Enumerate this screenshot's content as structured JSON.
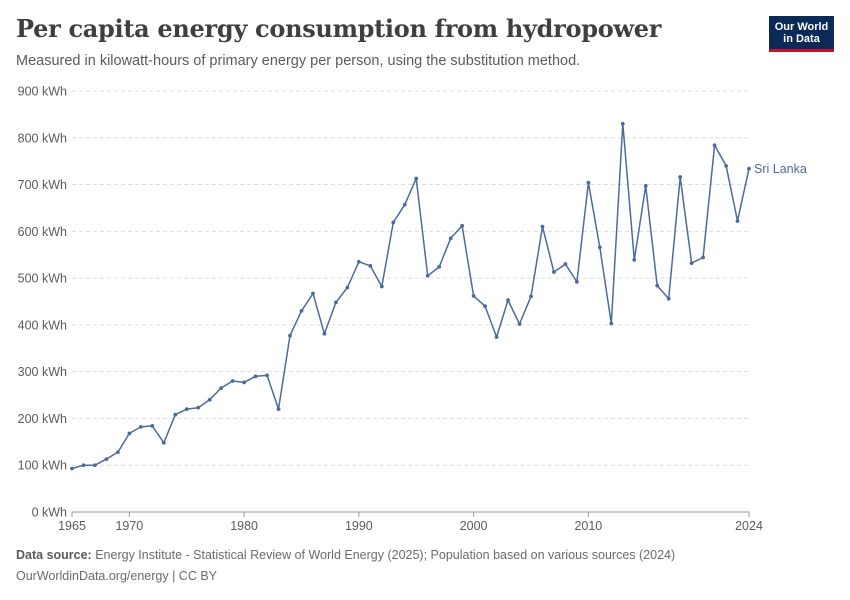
{
  "header": {
    "title": "Per capita energy consumption from hydropower",
    "subtitle": "Measured in kilowatt-hours of primary energy per person, using the substitution method."
  },
  "logo": {
    "line1": "Our World",
    "line2": "in Data"
  },
  "footer": {
    "source_label": "Data source:",
    "source_text": " Energy Institute - Statistical Review of World Energy (2025); Population based on various sources (2024)",
    "credit": "OurWorldinData.org/energy | CC BY"
  },
  "colors": {
    "series": "#4c6a9c",
    "grid": "#dddddd",
    "text": "#5b5b5b"
  },
  "chart_data": {
    "type": "line",
    "title": "Per capita energy consumption from hydropower",
    "ylabel": "",
    "xlabel": "",
    "ylim": [
      0,
      900
    ],
    "xlim": [
      1965,
      2024
    ],
    "y_ticks": [
      0,
      100,
      200,
      300,
      400,
      500,
      600,
      700,
      800,
      900
    ],
    "y_tick_labels": [
      "0 kWh",
      "100 kWh",
      "200 kWh",
      "300 kWh",
      "400 kWh",
      "500 kWh",
      "600 kWh",
      "700 kWh",
      "800 kWh",
      "900 kWh"
    ],
    "x_ticks": [
      1965,
      1970,
      1980,
      1990,
      2000,
      2010,
      2024
    ],
    "x_tick_labels": [
      "1965",
      "1970",
      "1980",
      "1990",
      "2000",
      "2010",
      "2024"
    ],
    "grid": "horizontal-dashed",
    "legend": "end-of-line label",
    "series": [
      {
        "name": "Sri Lanka",
        "x": [
          1965,
          1966,
          1967,
          1968,
          1969,
          1970,
          1971,
          1972,
          1973,
          1974,
          1975,
          1976,
          1977,
          1978,
          1979,
          1980,
          1981,
          1982,
          1983,
          1984,
          1985,
          1986,
          1987,
          1988,
          1989,
          1990,
          1991,
          1992,
          1993,
          1994,
          1995,
          1996,
          1997,
          1998,
          1999,
          2000,
          2001,
          2002,
          2003,
          2004,
          2005,
          2006,
          2007,
          2008,
          2009,
          2010,
          2011,
          2012,
          2013,
          2014,
          2015,
          2016,
          2017,
          2018,
          2019,
          2020,
          2021,
          2022,
          2023,
          2024
        ],
        "values": [
          93,
          100,
          100,
          113,
          128,
          168,
          182,
          184,
          148,
          208,
          220,
          223,
          240,
          265,
          280,
          277,
          290,
          292,
          220,
          377,
          430,
          467,
          381,
          448,
          480,
          535,
          526,
          482,
          619,
          657,
          713,
          505,
          524,
          585,
          612,
          462,
          440,
          374,
          453,
          402,
          461,
          610,
          513,
          530,
          492,
          704,
          566,
          403,
          830,
          539,
          697,
          484,
          456,
          716,
          532,
          544,
          784,
          740,
          622,
          734
        ]
      }
    ]
  }
}
